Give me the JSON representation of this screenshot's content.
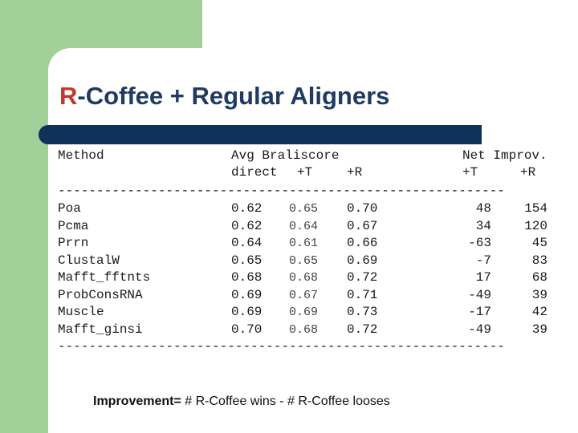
{
  "slide": {
    "title_accent": "R",
    "title_rest": "-Coffee + Regular Aligners",
    "colors": {
      "accent": "#c0392b",
      "title": "#1f3b63",
      "green": "#a3cf98",
      "rule": "#10325a"
    }
  },
  "table": {
    "header_method": "Method",
    "header_avg": "Avg Braliscore",
    "header_net": "Net Improv.",
    "sub_direct": "direct",
    "sub_t": "+T",
    "sub_r": "+R",
    "sub_net_t": "+T",
    "sub_net_r": "+R",
    "separator": "----------------------------------------------------------",
    "rows": [
      {
        "method": "Poa",
        "direct": "0.62",
        "t": "0.65",
        "r": "0.70",
        "net_t": "48",
        "net_r": "154"
      },
      {
        "method": "Pcma",
        "direct": "0.62",
        "t": "0.64",
        "r": "0.67",
        "net_t": "34",
        "net_r": "120"
      },
      {
        "method": "Prrn",
        "direct": "0.64",
        "t": "0.61",
        "r": "0.66",
        "net_t": "-63",
        "net_r": "45"
      },
      {
        "method": "ClustalW",
        "direct": "0.65",
        "t": "0.65",
        "r": "0.69",
        "net_t": "-7",
        "net_r": "83"
      },
      {
        "method": "Mafft_fftnts",
        "direct": "0.68",
        "t": "0.68",
        "r": "0.72",
        "net_t": "17",
        "net_r": "68"
      },
      {
        "method": "ProbConsRNA",
        "direct": "0.69",
        "t": "0.67",
        "r": "0.71",
        "net_t": "-49",
        "net_r": "39"
      },
      {
        "method": "Muscle",
        "direct": "0.69",
        "t": "0.69",
        "r": "0.73",
        "net_t": "-17",
        "net_r": "42"
      },
      {
        "method": "Mafft_ginsi",
        "direct": "0.70",
        "t": "0.68",
        "r": "0.72",
        "net_t": "-49",
        "net_r": "39"
      }
    ]
  },
  "footnote": {
    "label": "Improvement=",
    "text": " # R-Coffee wins - # R-Coffee looses"
  }
}
